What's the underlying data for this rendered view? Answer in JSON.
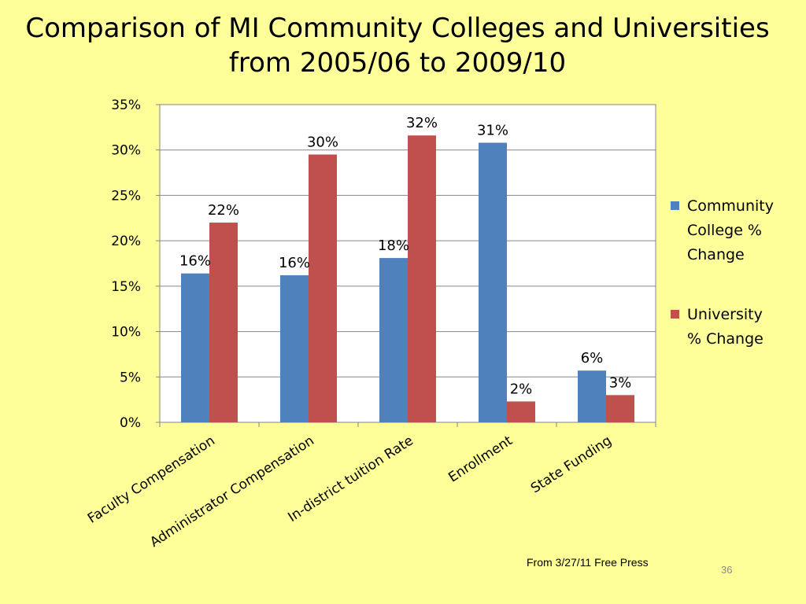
{
  "slide": {
    "title_line1": "Comparison of MI Community Colleges and Universities",
    "title_line2": "from 2005/06 to 2009/10",
    "source": "From 3/27/11 Free Press",
    "slide_number": "36"
  },
  "colors": {
    "background": "#FFFF99",
    "plot_area": "#FFFFFF",
    "series_1": "#4F81BD",
    "series_2": "#C0504D",
    "gridline": "#868686"
  },
  "chart_data": {
    "type": "bar",
    "title": "Comparison of MI Community Colleges and Universities from 2005/06 to 2009/10",
    "categories": [
      "Faculty Compensation",
      "Administrator Compensation",
      "In-district tuition Rate",
      "Enrollment",
      "State Funding"
    ],
    "series": [
      {
        "name": "Community College % Change",
        "values": [
          16.4,
          16.2,
          18.1,
          30.8,
          5.7
        ],
        "labels": [
          "16%",
          "16%",
          "18%",
          "31%",
          "6%"
        ]
      },
      {
        "name": "University % Change",
        "values": [
          22.0,
          29.5,
          31.6,
          2.3,
          3.0
        ],
        "labels": [
          "22%",
          "30%",
          "32%",
          "2%",
          "3%"
        ]
      }
    ],
    "y_ticks": [
      "0%",
      "5%",
      "10%",
      "15%",
      "20%",
      "25%",
      "30%",
      "35%"
    ],
    "ylim": [
      0,
      35
    ],
    "xlabel": "",
    "ylabel": "",
    "grid": true,
    "legend_position": "right"
  }
}
